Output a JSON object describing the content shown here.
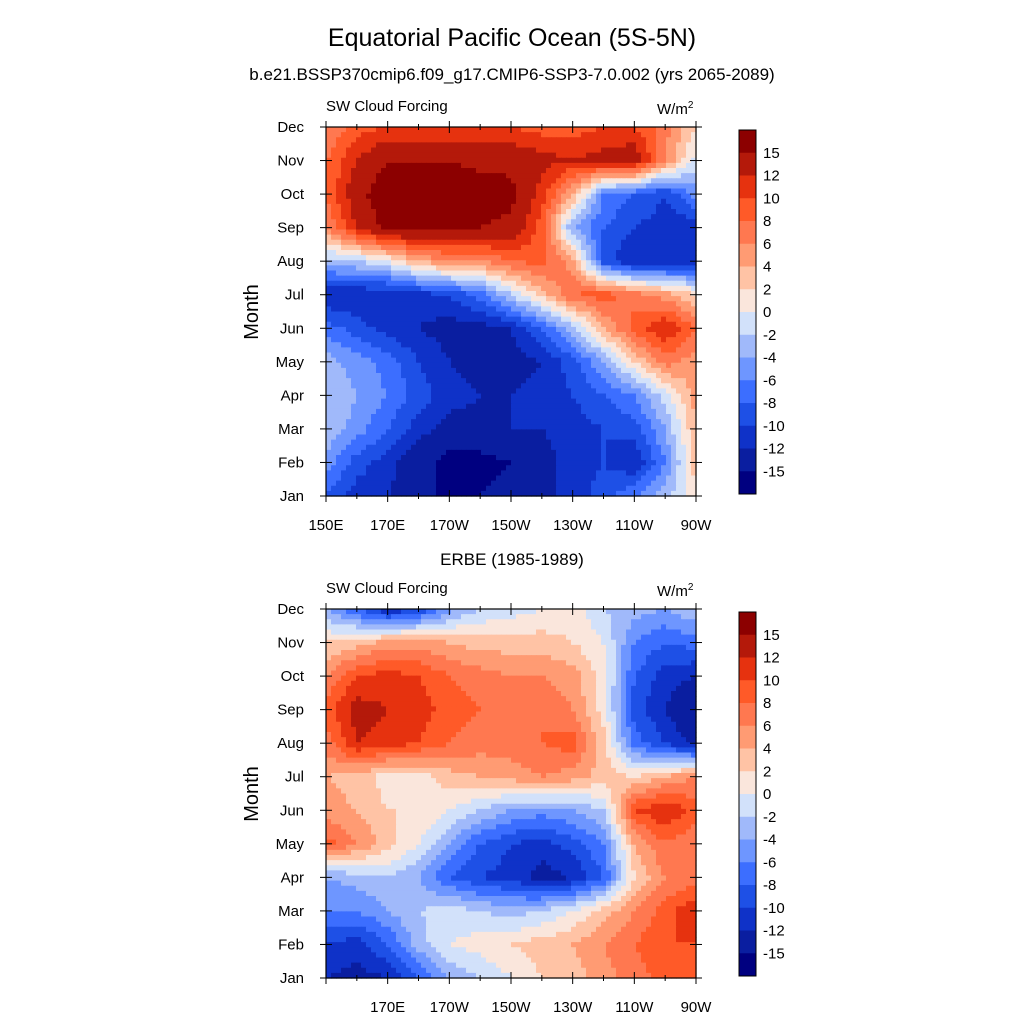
{
  "figure": {
    "title": "Equatorial Pacific Ocean (5S-5N)",
    "palette": [
      "#000080",
      "#0a1ea0",
      "#0f32c8",
      "#1e50e6",
      "#3c6eff",
      "#6e96ff",
      "#a0b9fa",
      "#d2e1fa",
      "#fae6dc",
      "#ffc3a5",
      "#ff9b73",
      "#ff7850",
      "#ff5a28",
      "#e6320f",
      "#b4190a",
      "#8c0000"
    ],
    "colorbar_labels": [
      "15",
      "12",
      "10",
      "8",
      "6",
      "4",
      "2",
      "0",
      "-2",
      "-4",
      "-6",
      "-8",
      "-10",
      "-12",
      "-15"
    ],
    "y_axis_label": "Month"
  },
  "chart_data": [
    {
      "type": "heatmap",
      "title": "b.e21.BSSP370cmip6.f09_g17.CMIP6-SSP3-7.0.002 (yrs 2065-2089)",
      "left_label": "SW Cloud Forcing",
      "units": "W/m",
      "units_sup": "2",
      "ylabel": "Month",
      "x_tick_labels": [
        "150E",
        "170E",
        "170W",
        "150W",
        "130W",
        "110W",
        "90W"
      ],
      "y_tick_labels": [
        "Jan",
        "Feb",
        "Mar",
        "Apr",
        "May",
        "Jun",
        "Jul",
        "Aug",
        "Sep",
        "Oct",
        "Nov",
        "Dec"
      ],
      "x_range": [
        "150E",
        "90W"
      ],
      "levels": [
        -15,
        -12,
        -10,
        -8,
        -6,
        -4,
        -2,
        0,
        2,
        4,
        6,
        8,
        10,
        12,
        15
      ],
      "x": [
        150,
        160,
        170,
        180,
        190,
        200,
        210,
        220,
        230,
        240,
        250,
        260,
        270
      ],
      "y": [
        "Jan",
        "Feb",
        "Mar",
        "Apr",
        "May",
        "Jun",
        "Jul",
        "Aug",
        "Sep",
        "Oct",
        "Nov",
        "Dec"
      ],
      "z": [
        [
          -8,
          -11,
          -12,
          -14,
          -16,
          -15,
          -14,
          -13,
          -11,
          -9,
          -6,
          -3,
          2
        ],
        [
          -5,
          -9,
          -11,
          -14,
          -16,
          -16,
          -15,
          -13,
          -11,
          -10,
          -12,
          -6,
          3
        ],
        [
          -2,
          -5,
          -8,
          -11,
          -13,
          -13,
          -12,
          -12,
          -11,
          -10,
          -9,
          -4,
          4
        ],
        [
          -2,
          -4,
          -6,
          -9,
          -11,
          -12,
          -12,
          -11,
          -10,
          -8,
          -6,
          -1,
          5
        ],
        [
          -3,
          -5,
          -7,
          -10,
          -12,
          -13,
          -13,
          -12,
          -9,
          -4,
          2,
          7,
          5
        ],
        [
          -7,
          -9,
          -11,
          -12,
          -13,
          -13,
          -12,
          -8,
          -3,
          4,
          9,
          12,
          8
        ],
        [
          -12,
          -12,
          -12,
          -11,
          -10,
          -7,
          -2,
          3,
          8,
          9,
          7,
          5,
          2
        ],
        [
          -3,
          -2,
          0,
          4,
          6,
          6,
          8,
          9,
          5,
          -9,
          -12,
          -12,
          -11
        ],
        [
          6,
          12,
          16,
          16,
          15,
          15,
          14,
          9,
          -4,
          -8,
          -10,
          -11,
          -12
        ],
        [
          8,
          14,
          17,
          17,
          17,
          17,
          16,
          11,
          4,
          -6,
          -8,
          -10,
          -5
        ],
        [
          8,
          12,
          15,
          15,
          15,
          14,
          14,
          13,
          12,
          13,
          14,
          6,
          -1
        ],
        [
          6,
          9,
          10,
          10,
          10,
          10,
          10,
          9,
          9,
          10,
          10,
          7,
          2
        ]
      ]
    },
    {
      "type": "heatmap",
      "title": "ERBE (1985-1989)",
      "left_label": "SW Cloud Forcing",
      "units": "W/m",
      "units_sup": "2",
      "ylabel": "Month",
      "x_tick_labels": [
        "170E",
        "170W",
        "150W",
        "130W",
        "110W",
        "90W"
      ],
      "y_tick_labels": [
        "Jan",
        "Feb",
        "Mar",
        "Apr",
        "May",
        "Jun",
        "Jul",
        "Aug",
        "Sep",
        "Oct",
        "Nov",
        "Dec"
      ],
      "x_range": [
        "150E",
        "90W"
      ],
      "levels": [
        -15,
        -12,
        -10,
        -8,
        -6,
        -4,
        -2,
        0,
        2,
        4,
        6,
        8,
        10,
        12,
        15
      ],
      "x": [
        150,
        160,
        170,
        180,
        190,
        200,
        210,
        220,
        230,
        240,
        250,
        260,
        270
      ],
      "y": [
        "Jan",
        "Feb",
        "Mar",
        "Apr",
        "May",
        "Jun",
        "Jul",
        "Aug",
        "Sep",
        "Oct",
        "Nov",
        "Dec"
      ],
      "z": [
        [
          -12,
          -13,
          -12,
          -8,
          -4,
          -2,
          0,
          2,
          3,
          5,
          7,
          9,
          10
        ],
        [
          -10,
          -11,
          -8,
          -3,
          0,
          1,
          2,
          3,
          4,
          6,
          8,
          10,
          10
        ],
        [
          -6,
          -6,
          -4,
          -2,
          -1,
          -2,
          -3,
          -2,
          0,
          3,
          6,
          9,
          12
        ],
        [
          -4,
          -3,
          -2,
          -4,
          -8,
          -10,
          -11,
          -13,
          -12,
          -8,
          2,
          6,
          7
        ],
        [
          9,
          6,
          3,
          0,
          -4,
          -8,
          -10,
          -11,
          -9,
          -6,
          4,
          8,
          6
        ],
        [
          5,
          4,
          2,
          2,
          0,
          -2,
          -4,
          -5,
          -4,
          -2,
          10,
          12,
          9
        ],
        [
          4,
          3,
          1,
          1,
          3,
          4,
          5,
          6,
          5,
          3,
          2,
          4,
          6
        ],
        [
          7,
          12,
          11,
          10,
          8,
          7,
          7,
          8,
          9,
          3,
          -7,
          -10,
          -13
        ],
        [
          9,
          13,
          12,
          11,
          9,
          8,
          8,
          8,
          6,
          1,
          -9,
          -12,
          -15
        ],
        [
          6,
          10,
          11,
          10,
          8,
          7,
          6,
          6,
          5,
          1,
          -8,
          -11,
          -12
        ],
        [
          2,
          3,
          5,
          5,
          4,
          3,
          3,
          3,
          2,
          0,
          -6,
          -8,
          -7
        ],
        [
          -4,
          -8,
          -12,
          -10,
          -5,
          -2,
          -1,
          0,
          1,
          -2,
          -3,
          -4,
          -2
        ]
      ]
    }
  ]
}
